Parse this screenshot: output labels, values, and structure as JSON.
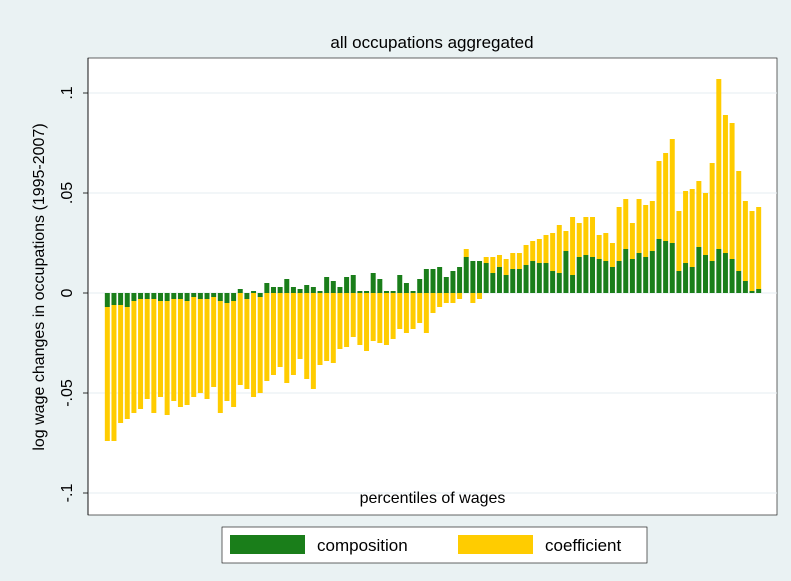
{
  "chart_data": {
    "type": "bar",
    "stacked": true,
    "title": "all occupations aggregated",
    "x_label": "percentiles of wages",
    "y_label": "log wage changes in occupations (1995-2007)",
    "ylim": [
      -0.111,
      0.1175
    ],
    "yticks": [
      {
        "value": -0.1,
        "label": "-.1"
      },
      {
        "value": -0.05,
        "label": "-.05"
      },
      {
        "value": 0,
        "label": "0"
      },
      {
        "value": 0.05,
        "label": ".05"
      },
      {
        "value": 0.1,
        "label": ".1"
      }
    ],
    "grid": true,
    "legend": "bottom",
    "series": [
      {
        "name": "composition",
        "color": "#1a7e1a",
        "values": [
          -0.007,
          -0.006,
          -0.006,
          -0.007,
          -0.004,
          -0.003,
          -0.003,
          -0.003,
          -0.004,
          -0.004,
          -0.003,
          -0.003,
          -0.004,
          -0.002,
          -0.003,
          -0.003,
          -0.002,
          -0.004,
          -0.005,
          -0.004,
          0.002,
          -0.003,
          0.001,
          -0.002,
          0.005,
          0.003,
          0.003,
          0.007,
          0.003,
          0.002,
          0.004,
          0.003,
          0.001,
          0.008,
          0.006,
          0.003,
          0.008,
          0.009,
          0.001,
          0.001,
          0.01,
          0.007,
          0.001,
          0.001,
          0.009,
          0.005,
          0.001,
          0.007,
          0.012,
          0.012,
          0.013,
          0.008,
          0.011,
          0.013,
          0.018,
          0.016,
          0.016,
          0.015,
          0.01,
          0.013,
          0.009,
          0.012,
          0.012,
          0.014,
          0.016,
          0.015,
          0.015,
          0.011,
          0.01,
          0.021,
          0.009,
          0.018,
          0.019,
          0.018,
          0.017,
          0.016,
          0.013,
          0.016,
          0.022,
          0.017,
          0.02,
          0.018,
          0.021,
          0.027,
          0.026,
          0.025,
          0.011,
          0.015,
          0.013,
          0.023,
          0.019,
          0.016,
          0.022,
          0.02,
          0.017,
          0.011,
          0.006,
          0.001,
          0.002
        ]
      },
      {
        "name": "coefficient",
        "color": "#ffcc00",
        "values": [
          -0.067,
          -0.068,
          -0.059,
          -0.056,
          -0.056,
          -0.055,
          -0.05,
          -0.057,
          -0.048,
          -0.057,
          -0.051,
          -0.054,
          -0.052,
          -0.05,
          -0.047,
          -0.05,
          -0.045,
          -0.056,
          -0.049,
          -0.053,
          -0.046,
          -0.045,
          -0.052,
          -0.048,
          -0.044,
          -0.041,
          -0.037,
          -0.045,
          -0.041,
          -0.033,
          -0.043,
          -0.048,
          -0.036,
          -0.034,
          -0.035,
          -0.028,
          -0.027,
          -0.022,
          -0.026,
          -0.029,
          -0.024,
          -0.025,
          -0.026,
          -0.023,
          -0.018,
          -0.02,
          -0.018,
          -0.015,
          -0.02,
          -0.01,
          -0.007,
          -0.005,
          -0.005,
          -0.003,
          0.004,
          -0.005,
          -0.003,
          0.003,
          0.008,
          0.006,
          0.008,
          0.008,
          0.008,
          0.01,
          0.01,
          0.012,
          0.014,
          0.019,
          0.024,
          0.01,
          0.029,
          0.017,
          0.019,
          0.02,
          0.012,
          0.014,
          0.012,
          0.027,
          0.025,
          0.018,
          0.027,
          0.026,
          0.025,
          0.039,
          0.044,
          0.052,
          0.03,
          0.036,
          0.039,
          0.033,
          0.031,
          0.049,
          0.085,
          0.069,
          0.068,
          0.05,
          0.04,
          0.04,
          0.041
        ]
      }
    ]
  }
}
